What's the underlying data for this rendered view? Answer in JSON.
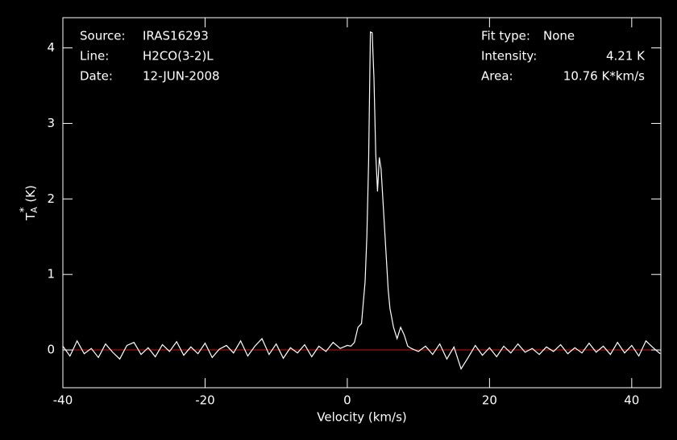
{
  "chart_data": {
    "type": "line",
    "xlabel": "Velocity (km/s)",
    "ylabel": {
      "main": "T",
      "sub": "A",
      "sup": "*",
      "unit": "(K)"
    },
    "annotations_left": [
      [
        "Source:",
        "IRAS16293"
      ],
      [
        "Line:",
        "H2CO(3-2)L"
      ],
      [
        "Date:",
        "12-JUN-2008"
      ]
    ],
    "annotations_right": [
      [
        "Fit type:",
        "None"
      ],
      [
        "Intensity:",
        "4.21 K"
      ],
      [
        "Area:",
        "10.76 K*km/s"
      ]
    ],
    "xlim": [
      -40,
      44.1
    ],
    "ylim": [
      -0.5,
      4.4
    ],
    "xticks": [
      -40,
      -20,
      0,
      20,
      40
    ],
    "yticks": [
      0,
      1,
      2,
      3,
      4
    ],
    "baseline": 0,
    "baseline_color": "#d01010",
    "series": [
      {
        "color": "#ffffff",
        "x": [
          -40,
          -39,
          -38,
          -37,
          -36,
          -35,
          -34,
          -33,
          -32,
          -31,
          -30,
          -29,
          -28,
          -27,
          -26,
          -25,
          -24,
          -23,
          -22,
          -21,
          -20,
          -19,
          -18,
          -17,
          -16,
          -15,
          -14,
          -13,
          -12,
          -11,
          -10,
          -9,
          -8,
          -7,
          -6,
          -5,
          -4,
          -3,
          -2,
          -1,
          0,
          0.5,
          1,
          1.5,
          2,
          2.5,
          2.75,
          3,
          3.25,
          3.5,
          3.75,
          4,
          4.25,
          4.5,
          4.75,
          5,
          5.25,
          5.5,
          5.75,
          6,
          6.5,
          7,
          7.5,
          8,
          8.5,
          9,
          10,
          11,
          12,
          13,
          14,
          15,
          16,
          17,
          18,
          19,
          20,
          21,
          22,
          23,
          24,
          25,
          26,
          27,
          28,
          29,
          30,
          31,
          32,
          33,
          34,
          35,
          36,
          37,
          38,
          39,
          40,
          41,
          42,
          43,
          44
        ],
        "values": [
          0.05,
          -0.08,
          0.12,
          -0.05,
          0.02,
          -0.1,
          0.08,
          -0.03,
          -0.12,
          0.06,
          0.1,
          -0.06,
          0.03,
          -0.09,
          0.07,
          -0.02,
          0.11,
          -0.07,
          0.04,
          -0.05,
          0.09,
          -0.1,
          0.01,
          0.06,
          -0.04,
          0.12,
          -0.08,
          0.05,
          0.15,
          -0.06,
          0.08,
          -0.11,
          0.03,
          -0.04,
          0.07,
          -0.09,
          0.05,
          -0.02,
          0.1,
          0.02,
          0.06,
          0.05,
          0.1,
          0.3,
          0.35,
          0.9,
          1.5,
          2.5,
          4.21,
          4.2,
          3.6,
          2.6,
          2.1,
          2.55,
          2.4,
          2.0,
          1.6,
          1.2,
          0.8,
          0.55,
          0.3,
          0.15,
          0.3,
          0.2,
          0.05,
          0.02,
          -0.02,
          0.05,
          -0.06,
          0.08,
          -0.12,
          0.04,
          -0.25,
          -0.1,
          0.06,
          -0.07,
          0.03,
          -0.09,
          0.05,
          -0.04,
          0.08,
          -0.03,
          0.02,
          -0.06,
          0.04,
          -0.02,
          0.07,
          -0.05,
          0.03,
          -0.04,
          0.09,
          -0.03,
          0.05,
          -0.06,
          0.1,
          -0.04,
          0.06,
          -0.08,
          0.12,
          0.03,
          -0.05
        ]
      }
    ]
  }
}
